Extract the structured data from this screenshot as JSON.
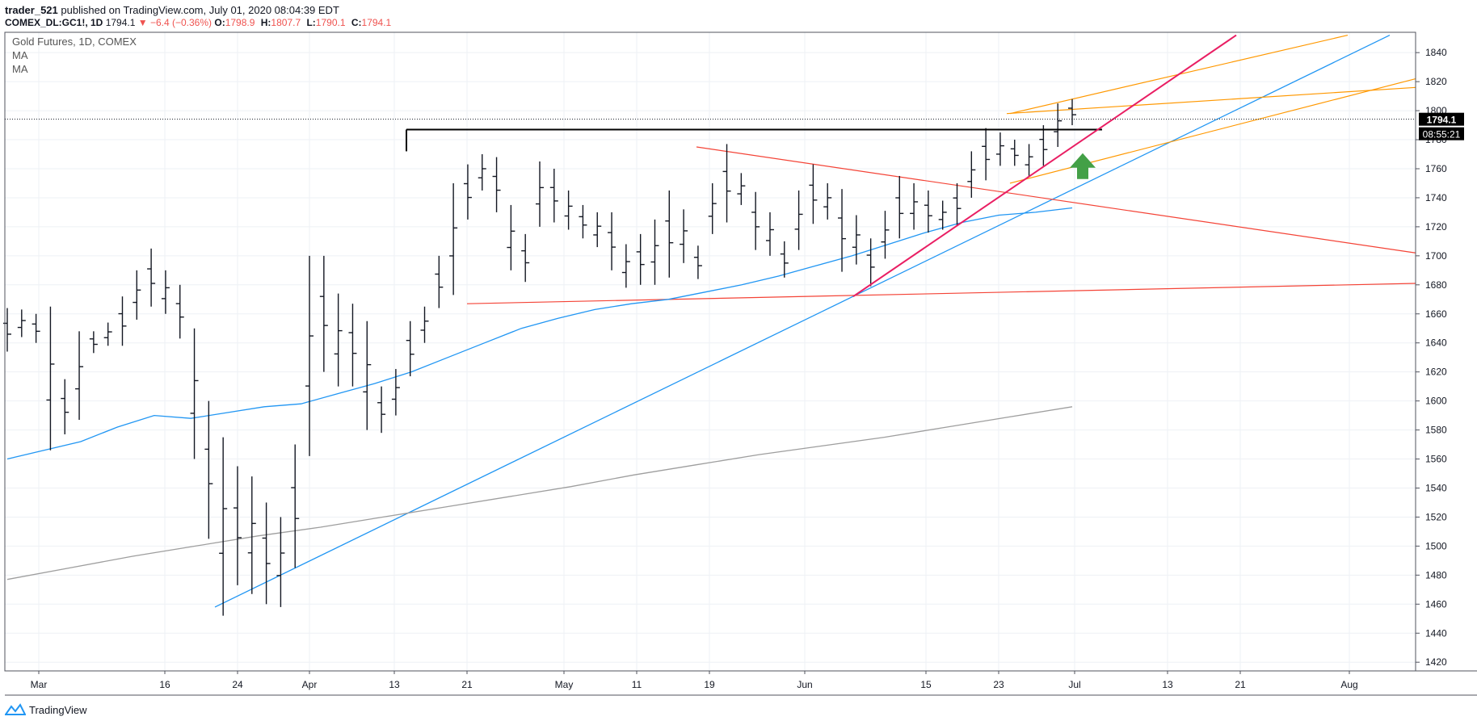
{
  "header": {
    "user": "trader_521",
    "published_text": "published on TradingView.com, July 01, 2020 08:04:39 EDT",
    "ticker": "COMEX_DL:GC1!, 1D",
    "last": "1794.1",
    "change": "▼ −6.4 (−0.36%)",
    "o_label": "O:",
    "o_value": "1798.9",
    "h_label": "H:",
    "h_value": "1807.7",
    "l_label": "L:",
    "l_value": "1790.1",
    "c_label": "C:",
    "c_value": "1794.1"
  },
  "legend": {
    "symbol": "Gold Futures, 1D, COMEX",
    "indicators": [
      "MA",
      "MA"
    ]
  },
  "brand": {
    "name": "TradingView",
    "icon": "tradingview-logo-icon"
  },
  "colors": {
    "price_bars": "#131722",
    "ma_short": "#2196f3",
    "ma_long": "#9e9e9e",
    "resistance_line": "#000000",
    "triangle_lines": "#f44336",
    "trendline_steep": "#e91e63",
    "trendline_long": "#2196f3",
    "channel_lines": "#ff9800",
    "arrow": "#43a047",
    "last_price_bg": "#000000"
  },
  "chart_data": {
    "type": "ohlc",
    "title": "Gold Futures, 1D, COMEX",
    "x_tick_labels": [
      "Mar",
      "16",
      "24",
      "Apr",
      "13",
      "21",
      "May",
      "11",
      "19",
      "Jun",
      "15",
      "23",
      "Jul",
      "13",
      "21",
      "Aug"
    ],
    "y_ticks": [
      1420,
      1440,
      1460,
      1480,
      1500,
      1520,
      1540,
      1560,
      1580,
      1600,
      1620,
      1640,
      1660,
      1680,
      1700,
      1720,
      1740,
      1760,
      1780,
      1800,
      1820,
      1840
    ],
    "ylim": [
      1414,
      1854
    ],
    "last_price_label": "1794.1",
    "countdown_label": "08:55:21",
    "bars": [
      {
        "high": 1664,
        "low": 1634
      },
      {
        "high": 1663,
        "low": 1644
      },
      {
        "high": 1660,
        "low": 1640
      },
      {
        "high": 1665,
        "low": 1566
      },
      {
        "high": 1615,
        "low": 1577
      },
      {
        "high": 1648,
        "low": 1587
      },
      {
        "high": 1648,
        "low": 1633
      },
      {
        "high": 1654,
        "low": 1638
      },
      {
        "high": 1672,
        "low": 1638
      },
      {
        "high": 1690,
        "low": 1656
      },
      {
        "high": 1705,
        "low": 1665
      },
      {
        "high": 1690,
        "low": 1660
      },
      {
        "high": 1680,
        "low": 1643
      },
      {
        "high": 1650,
        "low": 1560
      },
      {
        "high": 1600,
        "low": 1505
      },
      {
        "high": 1575,
        "low": 1452
      },
      {
        "high": 1555,
        "low": 1473
      },
      {
        "high": 1548,
        "low": 1467
      },
      {
        "high": 1530,
        "low": 1460
      },
      {
        "high": 1520,
        "low": 1458
      },
      {
        "high": 1570,
        "low": 1485
      },
      {
        "high": 1700,
        "low": 1562
      },
      {
        "high": 1700,
        "low": 1620
      },
      {
        "high": 1674,
        "low": 1610
      },
      {
        "high": 1667,
        "low": 1610
      },
      {
        "high": 1655,
        "low": 1580
      },
      {
        "high": 1610,
        "low": 1578
      },
      {
        "high": 1622,
        "low": 1590
      },
      {
        "high": 1655,
        "low": 1617
      },
      {
        "high": 1665,
        "low": 1640
      },
      {
        "high": 1700,
        "low": 1664
      },
      {
        "high": 1750,
        "low": 1673
      },
      {
        "high": 1763,
        "low": 1725
      },
      {
        "high": 1770,
        "low": 1745
      },
      {
        "high": 1768,
        "low": 1730
      },
      {
        "high": 1735,
        "low": 1690
      },
      {
        "high": 1715,
        "low": 1682
      },
      {
        "high": 1765,
        "low": 1720
      },
      {
        "high": 1760,
        "low": 1723
      },
      {
        "high": 1745,
        "low": 1718
      },
      {
        "high": 1735,
        "low": 1712
      },
      {
        "high": 1730,
        "low": 1706
      },
      {
        "high": 1730,
        "low": 1690
      },
      {
        "high": 1708,
        "low": 1678
      },
      {
        "high": 1715,
        "low": 1680
      },
      {
        "high": 1725,
        "low": 1680
      },
      {
        "high": 1745,
        "low": 1685
      },
      {
        "high": 1732,
        "low": 1695
      },
      {
        "high": 1707,
        "low": 1684
      },
      {
        "high": 1750,
        "low": 1715
      },
      {
        "high": 1777,
        "low": 1723
      },
      {
        "high": 1757,
        "low": 1735
      },
      {
        "high": 1744,
        "low": 1704
      },
      {
        "high": 1730,
        "low": 1700
      },
      {
        "high": 1710,
        "low": 1685
      },
      {
        "high": 1745,
        "low": 1704
      },
      {
        "high": 1763,
        "low": 1722
      },
      {
        "high": 1750,
        "low": 1725
      },
      {
        "high": 1746,
        "low": 1689
      },
      {
        "high": 1728,
        "low": 1694
      },
      {
        "high": 1712,
        "low": 1679
      },
      {
        "high": 1731,
        "low": 1698
      },
      {
        "high": 1755,
        "low": 1712
      },
      {
        "high": 1750,
        "low": 1718
      },
      {
        "high": 1745,
        "low": 1716
      },
      {
        "high": 1738,
        "low": 1718
      },
      {
        "high": 1750,
        "low": 1721
      },
      {
        "high": 1772,
        "low": 1740
      },
      {
        "high": 1788,
        "low": 1752
      },
      {
        "high": 1785,
        "low": 1762
      },
      {
        "high": 1780,
        "low": 1762
      },
      {
        "high": 1777,
        "low": 1755
      },
      {
        "high": 1790,
        "low": 1762
      },
      {
        "high": 1805,
        "low": 1775
      },
      {
        "high": 1808,
        "low": 1790
      }
    ],
    "series": [
      {
        "name": "MA",
        "kind": "short_ma",
        "values": [
          1560,
          1566,
          1572,
          1582,
          1590,
          1588,
          1592,
          1596,
          1598,
          1605,
          1612,
          1620,
          1630,
          1640,
          1650,
          1657,
          1663,
          1667,
          1670,
          1675,
          1680,
          1686,
          1693,
          1700,
          1708,
          1716,
          1723,
          1728,
          1730,
          1733
        ]
      },
      {
        "name": "MA",
        "kind": "long_ma",
        "values": [
          1477,
          1485,
          1493,
          1500,
          1507,
          1513,
          1520,
          1527,
          1534,
          1541,
          1549,
          1556,
          1563,
          1569,
          1575,
          1582,
          1589,
          1596
        ]
      }
    ]
  }
}
